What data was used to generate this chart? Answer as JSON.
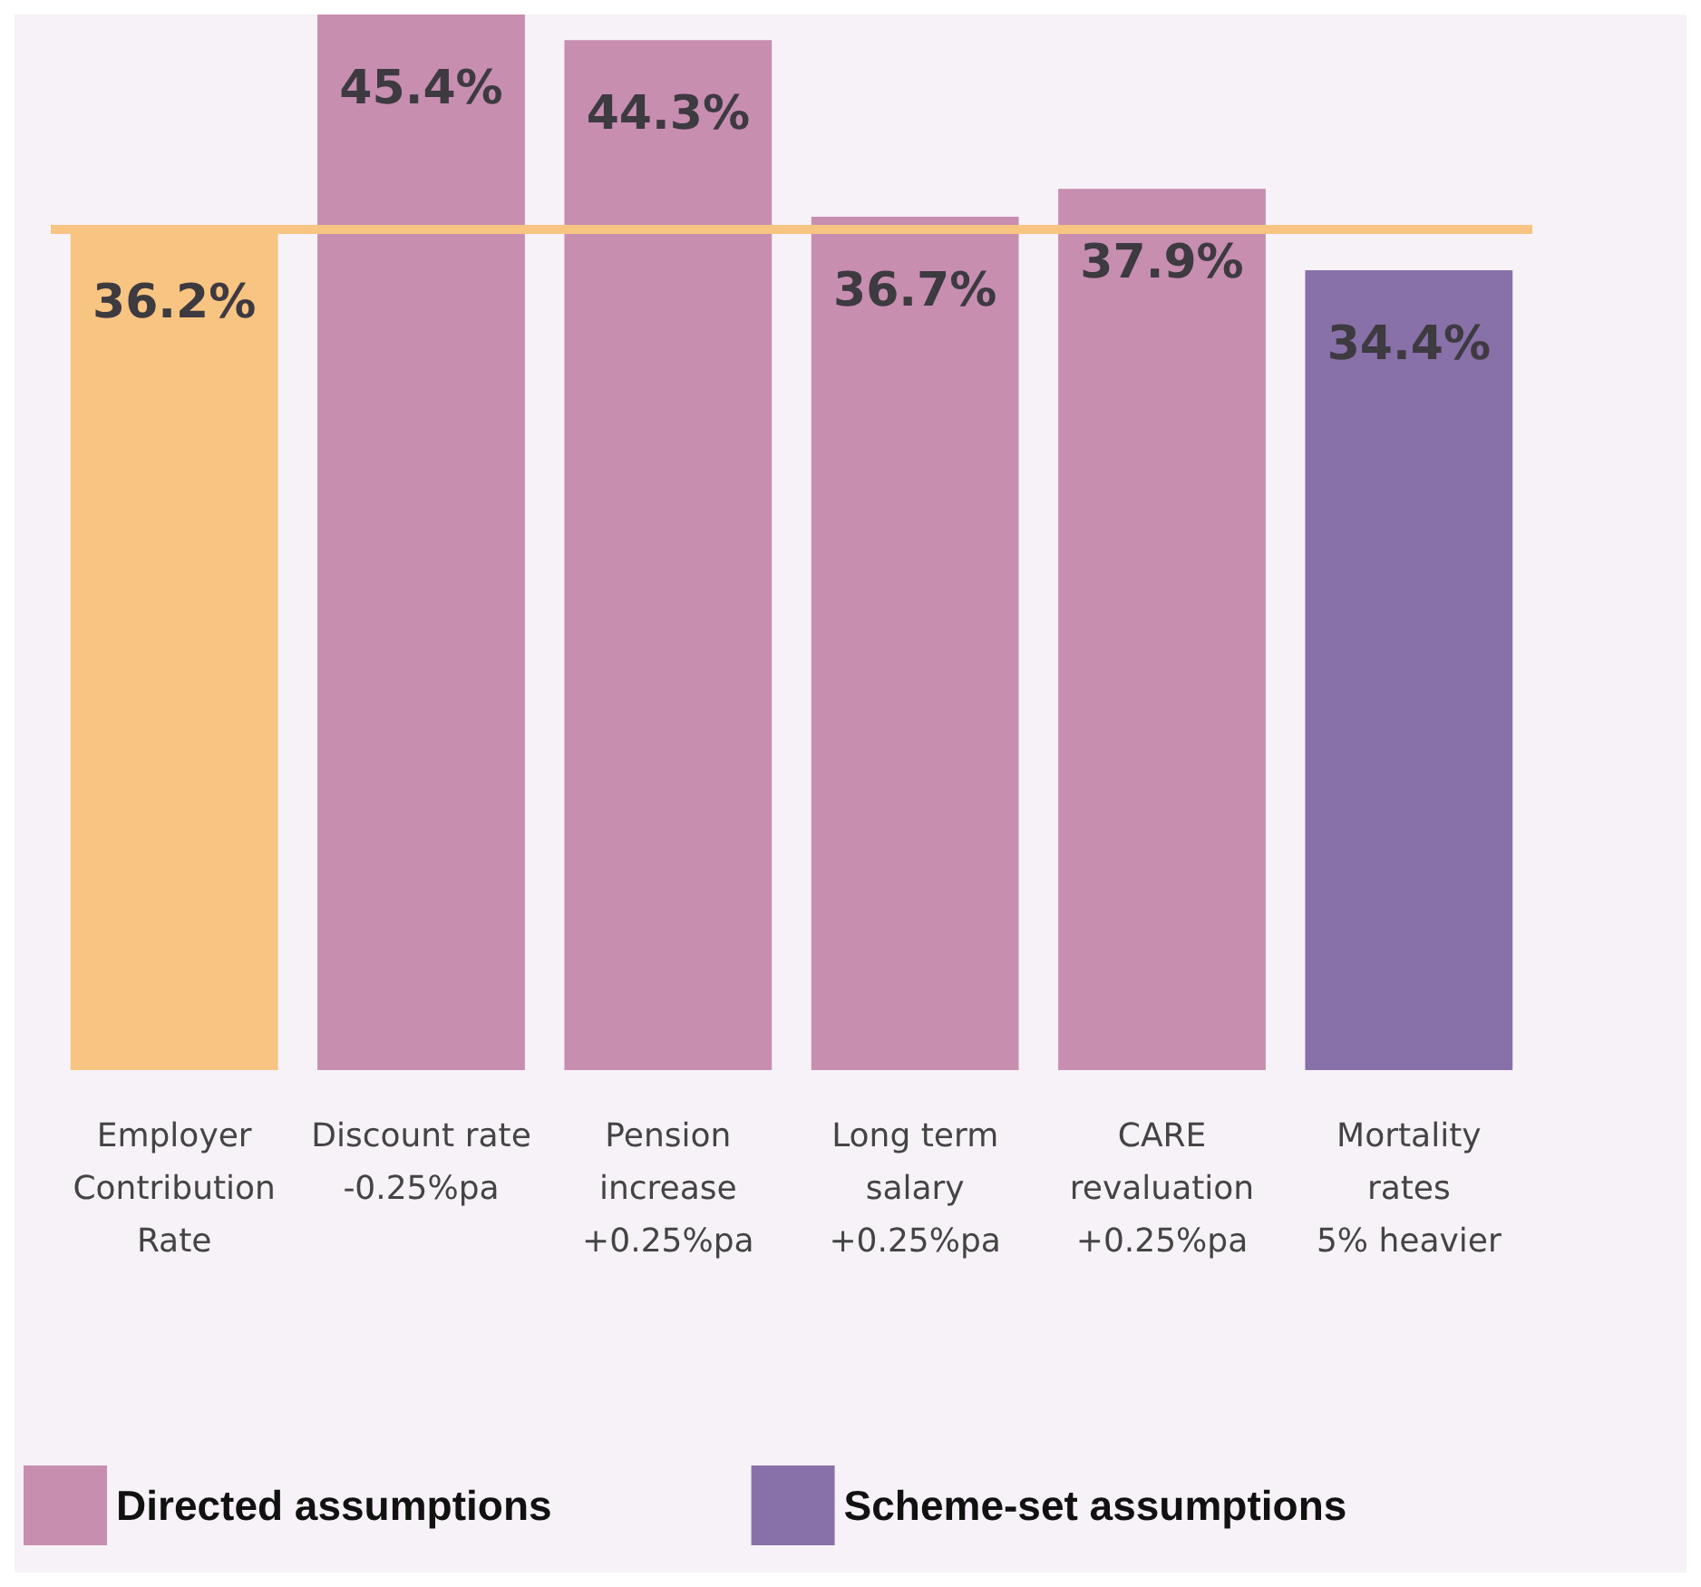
{
  "chart_data": {
    "type": "bar",
    "categories": [
      "Employer\nContribution\nRate",
      "Discount rate\n-0.25%pa",
      "Pension\nincrease\n+0.25%pa",
      "Long term\nsalary\n+0.25%pa",
      "CARE\nrevaluation\n+0.25%pa",
      "Mortality\nrates\n5% heavier"
    ],
    "series": [
      {
        "color": "#f8c482",
        "values": [
          36.2,
          null,
          null,
          null,
          null,
          null
        ],
        "value_labels": [
          "36.2%",
          null,
          null,
          null,
          null,
          null
        ]
      },
      {
        "name": "Directed assumptions",
        "color": "#c78eb0",
        "values": [
          null,
          45.4,
          44.3,
          36.7,
          37.9,
          null
        ],
        "value_labels": [
          null,
          "45.4%",
          "44.3%",
          "36.7%",
          "37.9%",
          null
        ]
      },
      {
        "name": "Scheme-set assumptions",
        "color": "#8870a8",
        "values": [
          null,
          null,
          null,
          null,
          null,
          34.4
        ],
        "value_labels": [
          null,
          null,
          null,
          null,
          null,
          "34.4%"
        ]
      }
    ],
    "ylim": [
      0,
      45.4
    ],
    "ref_lines": [
      {
        "axis": "y",
        "value": 36.2,
        "color": "#f8c482"
      }
    ],
    "legend": "bottom",
    "tick_labels": "x"
  }
}
